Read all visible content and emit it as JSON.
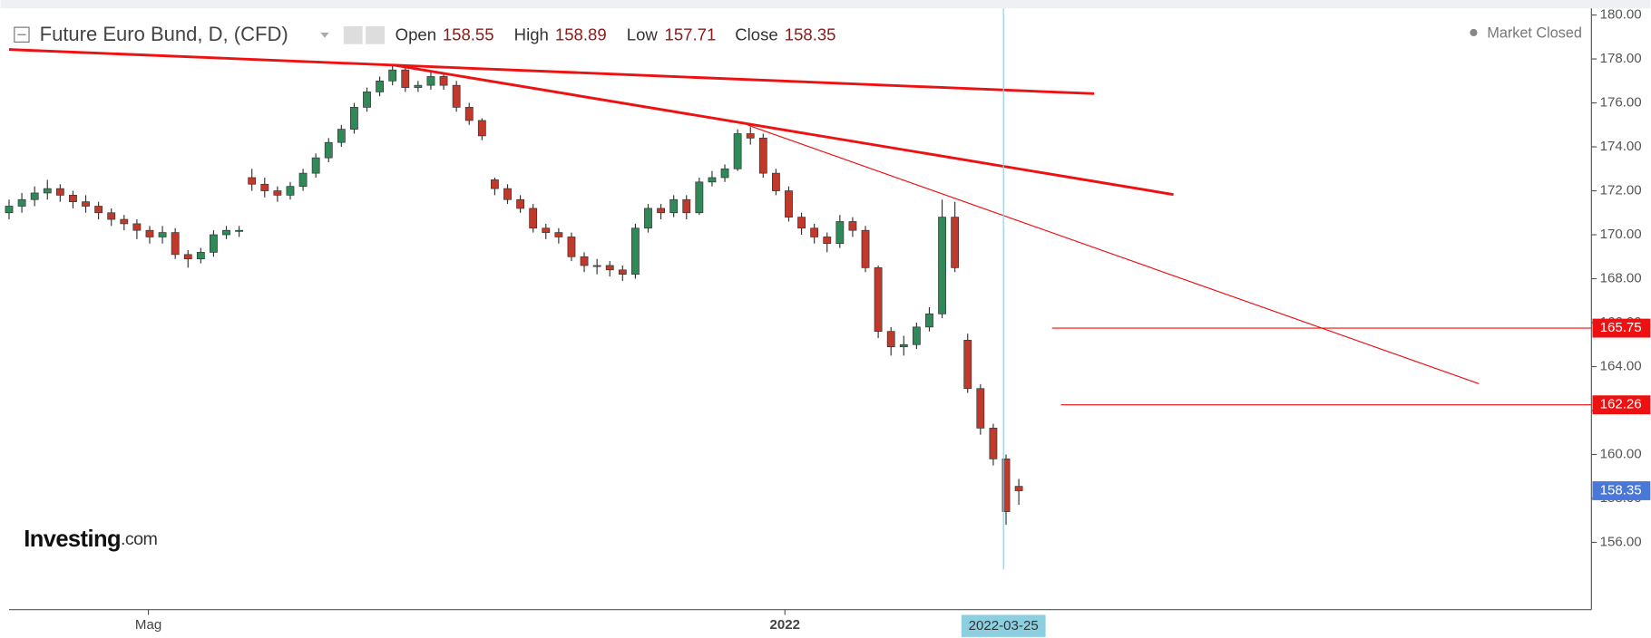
{
  "chart_data": {
    "type": "candlestick",
    "title": "Future Euro Bund, D, (CFD)",
    "ohlc_labels": {
      "open": "Open",
      "high": "High",
      "low": "Low",
      "close": "Close"
    },
    "status": "Market Closed",
    "brand": {
      "name": "Investing",
      "suffix": ".com"
    },
    "x": [
      0,
      1,
      2,
      3,
      4,
      5,
      6,
      7,
      8,
      9,
      10,
      11,
      12,
      13,
      14,
      15,
      16,
      17,
      18,
      19,
      20,
      21,
      22,
      23,
      24,
      25,
      26,
      27,
      28,
      29,
      30,
      31,
      32,
      33,
      34,
      35,
      36,
      37,
      38,
      39,
      40,
      41,
      42,
      43,
      44,
      45,
      46,
      47,
      48,
      49,
      50,
      51,
      52,
      53,
      54,
      55,
      56,
      57,
      58,
      59,
      60,
      61,
      62,
      63,
      64,
      65,
      66,
      67,
      68,
      69,
      70,
      71,
      72,
      73,
      74,
      75,
      76,
      77,
      78,
      79
    ],
    "open": [
      171.0,
      171.3,
      171.6,
      171.9,
      172.1,
      171.8,
      171.5,
      171.3,
      171.0,
      170.7,
      170.5,
      170.2,
      169.9,
      170.1,
      169.1,
      168.9,
      169.2,
      170.0,
      170.2,
      172.6,
      172.3,
      172.0,
      171.8,
      172.2,
      172.8,
      173.5,
      174.2,
      174.8,
      175.8,
      176.5,
      177.0,
      177.5,
      176.7,
      176.8,
      177.2,
      176.8,
      175.8,
      175.2,
      172.5,
      172.1,
      171.6,
      171.2,
      170.3,
      170.1,
      169.9,
      169.0,
      168.6,
      168.6,
      168.4,
      168.2,
      170.3,
      171.2,
      171.0,
      171.6,
      171.0,
      172.4,
      172.6,
      173.0,
      174.6,
      174.4,
      172.8,
      172.0,
      170.8,
      170.3,
      169.9,
      169.6,
      170.6,
      170.2,
      168.5,
      165.6,
      164.9,
      165.0,
      165.8,
      166.4,
      170.8,
      165.2,
      163.0,
      161.2,
      159.8,
      158.55
    ],
    "high": [
      171.6,
      171.9,
      172.2,
      172.5,
      172.3,
      172.0,
      171.8,
      171.5,
      171.2,
      170.9,
      170.7,
      170.4,
      170.4,
      170.3,
      169.3,
      169.4,
      170.2,
      170.4,
      170.4,
      173.0,
      172.6,
      172.2,
      172.4,
      173.0,
      173.7,
      174.4,
      175.0,
      176.0,
      176.7,
      177.2,
      177.7,
      177.6,
      177.0,
      177.4,
      177.3,
      177.0,
      176.0,
      175.3,
      172.6,
      172.3,
      171.8,
      171.4,
      170.5,
      170.3,
      170.1,
      169.2,
      168.9,
      168.8,
      168.6,
      170.5,
      171.4,
      171.4,
      171.8,
      171.8,
      172.6,
      172.9,
      173.2,
      174.8,
      174.9,
      174.6,
      173.0,
      172.2,
      171.0,
      170.5,
      170.1,
      170.9,
      170.8,
      170.4,
      168.6,
      165.8,
      165.4,
      166.0,
      166.7,
      171.6,
      171.5,
      165.5,
      163.2,
      161.4,
      160.0,
      158.89
    ],
    "low": [
      170.7,
      171.0,
      171.3,
      171.6,
      171.5,
      171.2,
      171.0,
      170.7,
      170.4,
      170.2,
      169.8,
      169.6,
      169.6,
      168.9,
      168.5,
      168.7,
      169.0,
      169.8,
      169.9,
      172.0,
      171.7,
      171.5,
      171.6,
      172.0,
      172.6,
      173.3,
      174.0,
      174.6,
      175.6,
      176.3,
      176.8,
      176.5,
      176.5,
      176.6,
      176.6,
      175.6,
      175.0,
      174.3,
      171.8,
      171.4,
      171.0,
      170.1,
      169.8,
      169.6,
      168.8,
      168.3,
      168.2,
      168.1,
      167.9,
      168.0,
      170.1,
      170.7,
      170.8,
      170.7,
      170.9,
      172.2,
      172.4,
      172.9,
      174.1,
      172.6,
      171.8,
      170.6,
      170.0,
      169.6,
      169.2,
      169.4,
      169.9,
      168.3,
      165.3,
      164.5,
      164.5,
      164.8,
      165.6,
      166.2,
      168.3,
      162.8,
      160.9,
      159.5,
      156.8,
      157.71
    ],
    "close": [
      171.3,
      171.6,
      171.9,
      172.1,
      171.8,
      171.5,
      171.3,
      171.0,
      170.7,
      170.5,
      170.2,
      169.9,
      170.1,
      169.1,
      168.9,
      169.2,
      170.0,
      170.2,
      170.2,
      172.3,
      172.0,
      171.8,
      172.2,
      172.8,
      173.5,
      174.2,
      174.8,
      175.8,
      176.5,
      177.0,
      177.5,
      176.7,
      176.8,
      177.2,
      176.8,
      175.8,
      175.2,
      174.5,
      172.1,
      171.6,
      171.2,
      170.3,
      170.1,
      169.9,
      169.0,
      168.6,
      168.6,
      168.4,
      168.2,
      170.3,
      171.2,
      171.0,
      171.6,
      171.0,
      172.4,
      172.6,
      173.0,
      174.6,
      174.4,
      172.8,
      172.0,
      170.8,
      170.3,
      169.9,
      169.6,
      170.6,
      170.2,
      168.5,
      165.6,
      164.9,
      165.0,
      165.8,
      166.4,
      170.8,
      168.5,
      163.0,
      161.2,
      159.8,
      157.4,
      158.35
    ],
    "up_color": "#2e8b57",
    "down_color": "#c0392b",
    "xlim": [
      0,
      123.8
    ],
    "ylim": [
      152.94,
      180.3
    ],
    "xticks": [
      {
        "value": 10.9,
        "label": "Mag"
      },
      {
        "value": 60.7,
        "label": "2022"
      }
    ],
    "yticks": [
      {
        "value": 156,
        "label": "156.00"
      },
      {
        "value": 158,
        "label": "158.00"
      },
      {
        "value": 160,
        "label": "160.00"
      },
      {
        "value": 162,
        "label": "162.00"
      },
      {
        "value": 164,
        "label": "164.00"
      },
      {
        "value": 166,
        "label": "166.00"
      },
      {
        "value": 168,
        "label": "168.00"
      },
      {
        "value": 170,
        "label": "170.00"
      },
      {
        "value": 172,
        "label": "172.00"
      },
      {
        "value": 174,
        "label": "174.00"
      },
      {
        "value": 176,
        "label": "176.00"
      },
      {
        "value": 178,
        "label": "178.00"
      },
      {
        "value": 180,
        "label": "180.00"
      }
    ],
    "trendlines": [
      {
        "x": [
          0,
          84.9
        ],
        "y": [
          178.43,
          176.42
        ],
        "width": 2.5
      },
      {
        "x": [
          30.2,
          91.1
        ],
        "y": [
          177.71,
          171.83
        ],
        "width": 2.5
      },
      {
        "x": [
          57.8,
          115.0
        ],
        "y": [
          174.99,
          163.22
        ],
        "width": 1
      }
    ],
    "line_color": "#ee1111",
    "levels": [
      {
        "x": 81.6,
        "value": 165.75
      },
      {
        "x": 82.3,
        "value": 162.26
      }
    ],
    "crosshair": {
      "value": 77.8,
      "label": "2022-03-25",
      "color": "#8ccfe0"
    },
    "price_box_color": "#4a78d8"
  }
}
